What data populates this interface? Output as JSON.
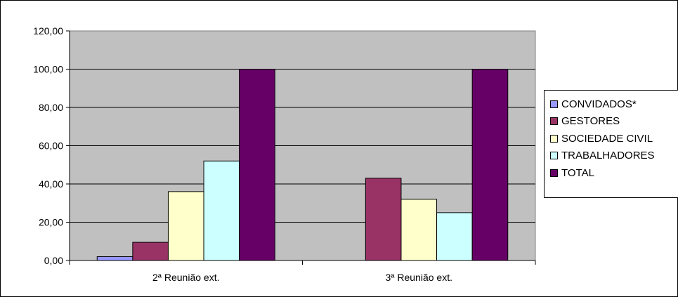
{
  "chart_data": {
    "type": "bar",
    "categories": [
      "2ª Reunião ext.",
      "3ª Reunião ext."
    ],
    "series": [
      {
        "name": "CONVIDADOS*",
        "values": [
          2,
          0
        ],
        "color": "#9999FF"
      },
      {
        "name": "GESTORES",
        "values": [
          9.5,
          43
        ],
        "color": "#993366"
      },
      {
        "name": "SOCIEDADE CIVIL",
        "values": [
          36,
          32
        ],
        "color": "#FFFFCC"
      },
      {
        "name": "TRABALHADORES",
        "values": [
          52,
          25
        ],
        "color": "#CCFFFF"
      },
      {
        "name": "TOTAL",
        "values": [
          100,
          100
        ],
        "color": "#660066"
      }
    ],
    "ylim": [
      0,
      120
    ],
    "yticks": [
      "0,00",
      "20,00",
      "40,00",
      "60,00",
      "80,00",
      "100,00",
      "120,00"
    ],
    "grid": true,
    "plot_background": "#C0C0C0",
    "legend_position": "right",
    "title": "",
    "xlabel": "",
    "ylabel": ""
  }
}
